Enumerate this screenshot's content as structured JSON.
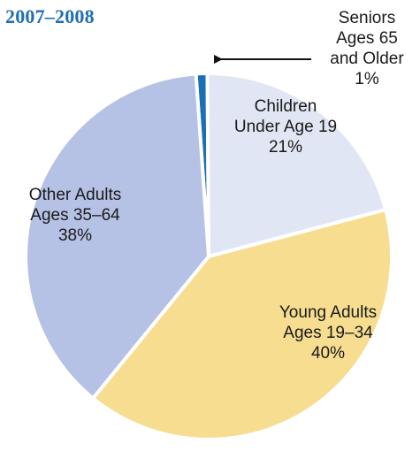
{
  "title": "2007–2008",
  "chart_data": {
    "type": "pie",
    "title": "2007–2008",
    "slices": [
      {
        "label_lines": [
          "Seniors",
          "Ages 65",
          "and Older"
        ],
        "value": 1,
        "value_label": "1%",
        "color": "#1a6fb5"
      },
      {
        "label_lines": [
          "Children",
          "Under Age 19"
        ],
        "value": 21,
        "value_label": "21%",
        "color": "#e1e6f4"
      },
      {
        "label_lines": [
          "Young Adults",
          "Ages 19–34"
        ],
        "value": 40,
        "value_label": "40%",
        "color": "#f6dd90"
      },
      {
        "label_lines": [
          "Other Adults",
          "Ages 35–64"
        ],
        "value": 38,
        "value_label": "38%",
        "color": "#b6c2e5"
      }
    ]
  }
}
